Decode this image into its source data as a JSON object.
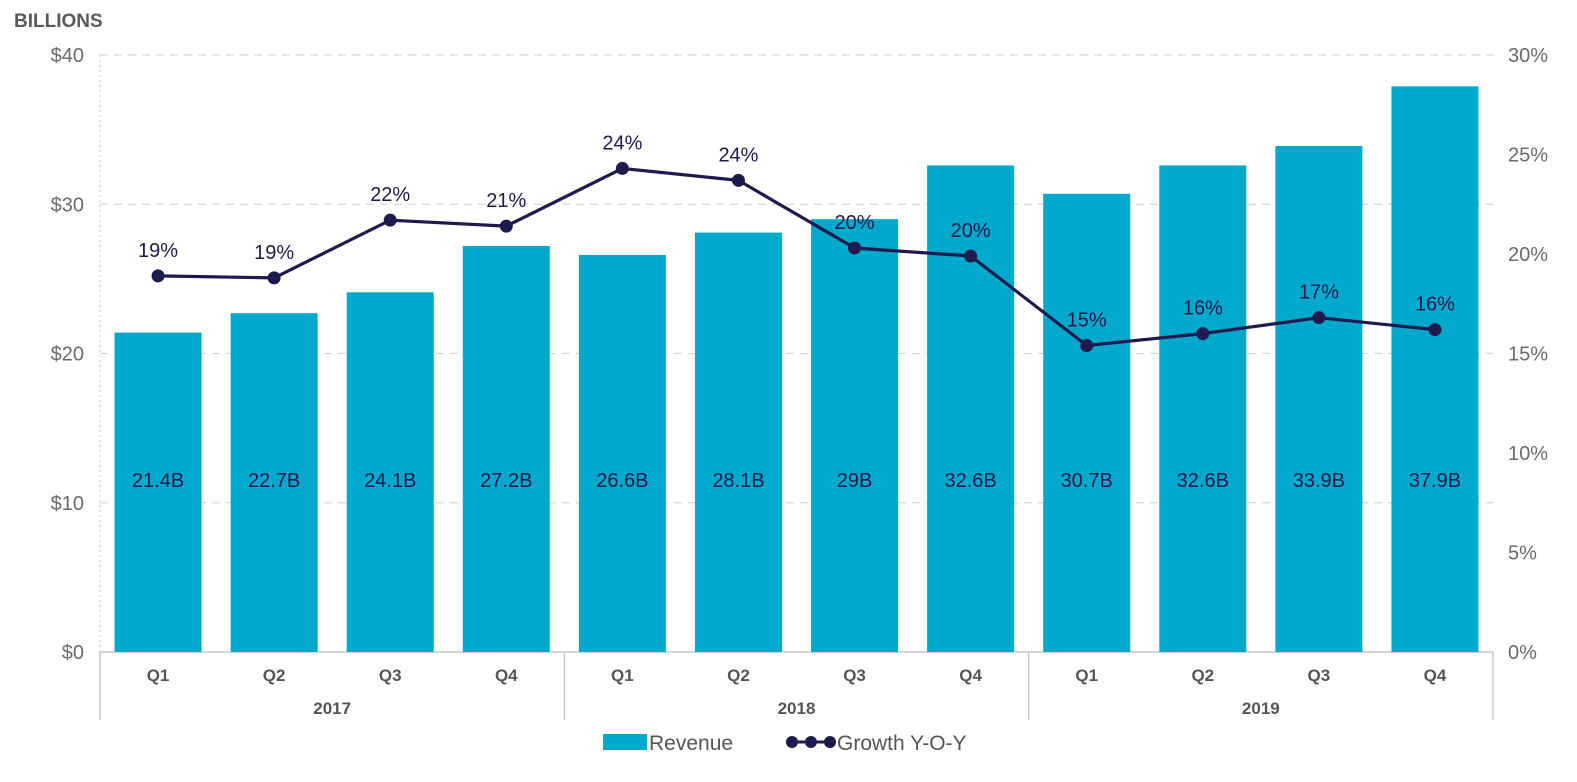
{
  "chart_data": {
    "type": "bar",
    "title": "",
    "ylabel_left": "BILLIONS",
    "categories": [
      "Q1",
      "Q2",
      "Q3",
      "Q4",
      "Q1",
      "Q2",
      "Q3",
      "Q4",
      "Q1",
      "Q2",
      "Q3",
      "Q4"
    ],
    "groups": [
      {
        "label": "2017",
        "start": 0,
        "end": 3
      },
      {
        "label": "2018",
        "start": 4,
        "end": 7
      },
      {
        "label": "2019",
        "start": 8,
        "end": 11
      }
    ],
    "series": [
      {
        "name": "Revenue",
        "type": "bar",
        "axis": "left",
        "color": "#00a8cc",
        "values": [
          21.4,
          22.7,
          24.1,
          27.2,
          26.6,
          28.1,
          29.0,
          32.6,
          30.7,
          32.6,
          33.9,
          37.9
        ],
        "labels": [
          "21.4B",
          "22.7B",
          "24.1B",
          "27.2B",
          "26.6B",
          "28.1B",
          "29B",
          "32.6B",
          "30.7B",
          "32.6B",
          "33.9B",
          "37.9B"
        ]
      },
      {
        "name": "Growth Y-O-Y",
        "type": "line",
        "axis": "right",
        "color": "#1e1a4d",
        "values": [
          18.9,
          18.8,
          21.7,
          21.4,
          24.3,
          23.7,
          20.3,
          19.9,
          15.4,
          16.0,
          16.8,
          16.2
        ],
        "labels": [
          "19%",
          "19%",
          "22%",
          "21%",
          "24%",
          "24%",
          "20%",
          "20%",
          "15%",
          "16%",
          "17%",
          "16%"
        ]
      }
    ],
    "y_left": {
      "min": 0,
      "max": 40,
      "ticks": [
        0,
        10,
        20,
        30,
        40
      ],
      "tick_labels": [
        "$0",
        "$10",
        "$20",
        "$30",
        "$40"
      ]
    },
    "y_right": {
      "min": 0,
      "max": 30,
      "ticks": [
        0,
        5,
        10,
        15,
        20,
        25,
        30
      ],
      "tick_labels": [
        "0%",
        "5%",
        "10%",
        "15%",
        "20%",
        "25%",
        "30%"
      ]
    },
    "grid": true,
    "legend": {
      "position": "bottom-center",
      "items": [
        "Revenue",
        "Growth Y-O-Y"
      ]
    }
  }
}
